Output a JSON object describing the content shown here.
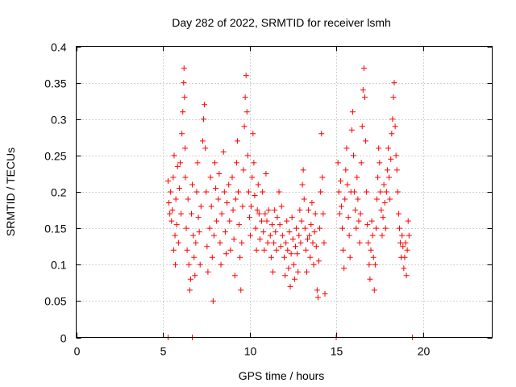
{
  "chart_data": {
    "type": "scatter",
    "title": "Day 282 of 2022, SRMTID for receiver lsmh",
    "xlabel": "GPS time / hours",
    "ylabel": "SRMTID / TECUs",
    "xlim": [
      0,
      24
    ],
    "ylim": [
      0,
      0.4
    ],
    "xticks": [
      0,
      5,
      10,
      15,
      20
    ],
    "xtick_labels": [
      "0",
      "5",
      "10",
      "15",
      "20"
    ],
    "yticks": [
      0,
      0.05,
      0.1,
      0.15,
      0.2,
      0.25,
      0.3,
      0.35,
      0.4
    ],
    "ytick_labels": [
      "0",
      "0.05",
      "0.1",
      "0.15",
      "0.2",
      "0.25",
      "0.3",
      "0.35",
      "0.4"
    ],
    "grid": true,
    "marker": "+",
    "marker_color": "#ff0000",
    "series": [
      {
        "name": "SRMTID",
        "points": [
          [
            5.3,
            0.215
          ],
          [
            5.35,
            0.185
          ],
          [
            5.4,
            0.17
          ],
          [
            5.45,
            0.2
          ],
          [
            5.5,
            0.16
          ],
          [
            5.55,
            0.175
          ],
          [
            5.6,
            0.22
          ],
          [
            5.62,
            0.12
          ],
          [
            5.65,
            0.25
          ],
          [
            5.7,
            0.14
          ],
          [
            5.72,
            0.1
          ],
          [
            5.75,
            0.19
          ],
          [
            5.8,
            0.155
          ],
          [
            5.85,
            0.235
          ],
          [
            5.9,
            0.13
          ],
          [
            5.95,
            0.205
          ],
          [
            6.0,
            0.24
          ],
          [
            6.05,
            0.17
          ],
          [
            6.1,
            0.28
          ],
          [
            6.15,
            0.31
          ],
          [
            6.2,
            0.35
          ],
          [
            6.22,
            0.37
          ],
          [
            6.25,
            0.33
          ],
          [
            6.28,
            0.26
          ],
          [
            6.3,
            0.22
          ],
          [
            6.35,
            0.15
          ],
          [
            6.4,
            0.12
          ],
          [
            6.45,
            0.19
          ],
          [
            6.5,
            0.1
          ],
          [
            6.55,
            0.065
          ],
          [
            6.6,
            0.08
          ],
          [
            6.65,
            0.17
          ],
          [
            6.7,
            0.21
          ],
          [
            6.75,
            0.14
          ],
          [
            6.8,
            0.11
          ],
          [
            6.85,
            0.085
          ],
          [
            6.9,
            0.13
          ],
          [
            6.95,
            0.2
          ],
          [
            7.0,
            0.24
          ],
          [
            7.05,
            0.165
          ],
          [
            7.1,
            0.145
          ],
          [
            7.15,
            0.1
          ],
          [
            7.2,
            0.18
          ],
          [
            7.3,
            0.27
          ],
          [
            7.35,
            0.3
          ],
          [
            7.4,
            0.32
          ],
          [
            7.45,
            0.26
          ],
          [
            7.5,
            0.2
          ],
          [
            7.55,
            0.125
          ],
          [
            7.6,
            0.09
          ],
          [
            7.7,
            0.15
          ],
          [
            7.75,
            0.22
          ],
          [
            7.8,
            0.18
          ],
          [
            7.85,
            0.11
          ],
          [
            7.9,
            0.05
          ],
          [
            7.95,
            0.14
          ],
          [
            8.0,
            0.24
          ],
          [
            8.05,
            0.205
          ],
          [
            8.1,
            0.16
          ],
          [
            8.2,
            0.19
          ],
          [
            8.25,
            0.225
          ],
          [
            8.3,
            0.13
          ],
          [
            8.35,
            0.1
          ],
          [
            8.4,
            0.17
          ],
          [
            8.5,
            0.255
          ],
          [
            8.55,
            0.2
          ],
          [
            8.6,
            0.145
          ],
          [
            8.65,
            0.115
          ],
          [
            8.7,
            0.185
          ],
          [
            8.8,
            0.21
          ],
          [
            8.85,
            0.16
          ],
          [
            8.9,
            0.12
          ],
          [
            9.0,
            0.22
          ],
          [
            9.05,
            0.175
          ],
          [
            9.1,
            0.135
          ],
          [
            9.15,
            0.085
          ],
          [
            9.2,
            0.19
          ],
          [
            9.25,
            0.24
          ],
          [
            9.3,
            0.27
          ],
          [
            9.35,
            0.2
          ],
          [
            9.4,
            0.155
          ],
          [
            9.45,
            0.11
          ],
          [
            9.5,
            0.065
          ],
          [
            9.55,
            0.13
          ],
          [
            9.6,
            0.18
          ],
          [
            9.65,
            0.23
          ],
          [
            9.7,
            0.29
          ],
          [
            9.75,
            0.33
          ],
          [
            9.8,
            0.36
          ],
          [
            9.85,
            0.31
          ],
          [
            9.9,
            0.25
          ],
          [
            9.95,
            0.2
          ],
          [
            10.0,
            0.165
          ],
          [
            10.05,
            0.14
          ],
          [
            10.1,
            0.18
          ],
          [
            10.15,
            0.22
          ],
          [
            10.2,
            0.28
          ],
          [
            10.25,
            0.24
          ],
          [
            10.3,
            0.195
          ],
          [
            10.35,
            0.15
          ],
          [
            10.4,
            0.12
          ],
          [
            10.45,
            0.175
          ],
          [
            10.5,
            0.21
          ],
          [
            10.55,
            0.17
          ],
          [
            10.6,
            0.135
          ],
          [
            10.7,
            0.16
          ],
          [
            10.75,
            0.2
          ],
          [
            10.8,
            0.145
          ],
          [
            10.85,
            0.12
          ],
          [
            10.9,
            0.17
          ],
          [
            10.95,
            0.225
          ],
          [
            11.0,
            0.16
          ],
          [
            11.05,
            0.13
          ],
          [
            11.1,
            0.175
          ],
          [
            11.2,
            0.14
          ],
          [
            11.25,
            0.11
          ],
          [
            11.3,
            0.155
          ],
          [
            11.35,
            0.09
          ],
          [
            11.4,
            0.13
          ],
          [
            11.45,
            0.175
          ],
          [
            11.5,
            0.145
          ],
          [
            11.55,
            0.12
          ],
          [
            11.6,
            0.165
          ],
          [
            11.7,
            0.2
          ],
          [
            11.75,
            0.155
          ],
          [
            11.8,
            0.125
          ],
          [
            11.85,
            0.18
          ],
          [
            11.9,
            0.14
          ],
          [
            12.0,
            0.11
          ],
          [
            12.05,
            0.085
          ],
          [
            12.1,
            0.13
          ],
          [
            12.15,
            0.16
          ],
          [
            12.2,
            0.12
          ],
          [
            12.25,
            0.095
          ],
          [
            12.3,
            0.145
          ],
          [
            12.35,
            0.07
          ],
          [
            12.4,
            0.115
          ],
          [
            12.45,
            0.165
          ],
          [
            12.5,
            0.135
          ],
          [
            12.55,
            0.1
          ],
          [
            12.6,
            0.08
          ],
          [
            12.65,
            0.125
          ],
          [
            12.7,
            0.15
          ],
          [
            12.75,
            0.115
          ],
          [
            12.8,
            0.09
          ],
          [
            12.85,
            0.14
          ],
          [
            12.9,
            0.175
          ],
          [
            12.95,
            0.13
          ],
          [
            13.0,
            0.16
          ],
          [
            13.05,
            0.21
          ],
          [
            13.1,
            0.23
          ],
          [
            13.15,
            0.19
          ],
          [
            13.2,
            0.15
          ],
          [
            13.25,
            0.12
          ],
          [
            13.3,
            0.09
          ],
          [
            13.35,
            0.135
          ],
          [
            13.4,
            0.175
          ],
          [
            13.45,
            0.14
          ],
          [
            13.5,
            0.11
          ],
          [
            13.55,
            0.155
          ],
          [
            13.6,
            0.185
          ],
          [
            13.65,
            0.13
          ],
          [
            13.7,
            0.1
          ],
          [
            13.75,
            0.145
          ],
          [
            13.8,
            0.17
          ],
          [
            13.85,
            0.125
          ],
          [
            13.9,
            0.065
          ],
          [
            13.95,
            0.055
          ],
          [
            14.0,
            0.105
          ],
          [
            14.05,
            0.15
          ],
          [
            14.1,
            0.2
          ],
          [
            14.15,
            0.28
          ],
          [
            14.2,
            0.22
          ],
          [
            14.25,
            0.17
          ],
          [
            14.3,
            0.13
          ],
          [
            14.35,
            0.06
          ],
          [
            15.1,
            0.24
          ],
          [
            15.15,
            0.2
          ],
          [
            15.2,
            0.17
          ],
          [
            15.25,
            0.215
          ],
          [
            15.3,
            0.18
          ],
          [
            15.35,
            0.15
          ],
          [
            15.4,
            0.12
          ],
          [
            15.45,
            0.095
          ],
          [
            15.5,
            0.19
          ],
          [
            15.55,
            0.23
          ],
          [
            15.6,
            0.26
          ],
          [
            15.65,
            0.21
          ],
          [
            15.7,
            0.165
          ],
          [
            15.75,
            0.14
          ],
          [
            15.8,
            0.11
          ],
          [
            15.85,
            0.2
          ],
          [
            15.9,
            0.285
          ],
          [
            15.95,
            0.31
          ],
          [
            16.0,
            0.25
          ],
          [
            16.05,
            0.2
          ],
          [
            16.1,
            0.175
          ],
          [
            16.15,
            0.15
          ],
          [
            16.2,
            0.22
          ],
          [
            16.25,
            0.19
          ],
          [
            16.3,
            0.16
          ],
          [
            16.35,
            0.13
          ],
          [
            16.4,
            0.17
          ],
          [
            16.45,
            0.24
          ],
          [
            16.5,
            0.29
          ],
          [
            16.55,
            0.34
          ],
          [
            16.6,
            0.37
          ],
          [
            16.65,
            0.33
          ],
          [
            16.7,
            0.27
          ],
          [
            16.75,
            0.2
          ],
          [
            16.8,
            0.155
          ],
          [
            16.85,
            0.13
          ],
          [
            16.9,
            0.1
          ],
          [
            16.95,
            0.08
          ],
          [
            17.0,
            0.12
          ],
          [
            17.05,
            0.16
          ],
          [
            17.1,
            0.14
          ],
          [
            17.15,
            0.11
          ],
          [
            17.2,
            0.065
          ],
          [
            17.25,
            0.1
          ],
          [
            17.3,
            0.15
          ],
          [
            17.35,
            0.19
          ],
          [
            17.4,
            0.22
          ],
          [
            17.45,
            0.26
          ],
          [
            17.5,
            0.24
          ],
          [
            17.55,
            0.2
          ],
          [
            17.6,
            0.175
          ],
          [
            17.65,
            0.14
          ],
          [
            17.7,
            0.165
          ],
          [
            17.75,
            0.21
          ],
          [
            17.8,
            0.185
          ],
          [
            17.85,
            0.15
          ],
          [
            17.9,
            0.2
          ],
          [
            17.95,
            0.23
          ],
          [
            18.0,
            0.26
          ],
          [
            18.05,
            0.22
          ],
          [
            18.1,
            0.19
          ],
          [
            18.15,
            0.245
          ],
          [
            18.2,
            0.28
          ],
          [
            18.25,
            0.3
          ],
          [
            18.3,
            0.33
          ],
          [
            18.35,
            0.35
          ],
          [
            18.4,
            0.29
          ],
          [
            18.45,
            0.25
          ],
          [
            18.5,
            0.23
          ],
          [
            18.55,
            0.2
          ],
          [
            18.6,
            0.17
          ],
          [
            18.65,
            0.15
          ],
          [
            18.7,
            0.13
          ],
          [
            18.75,
            0.11
          ],
          [
            18.8,
            0.14
          ],
          [
            18.85,
            0.125
          ],
          [
            18.9,
            0.095
          ],
          [
            18.95,
            0.11
          ],
          [
            19.0,
            0.13
          ],
          [
            19.05,
            0.085
          ],
          [
            19.1,
            0.12
          ],
          [
            19.15,
            0.16
          ],
          [
            19.2,
            0.14
          ],
          [
            5.3,
            0.0
          ],
          [
            6.7,
            0.0
          ],
          [
            15.0,
            0.0
          ],
          [
            19.4,
            0.0
          ]
        ]
      }
    ]
  }
}
